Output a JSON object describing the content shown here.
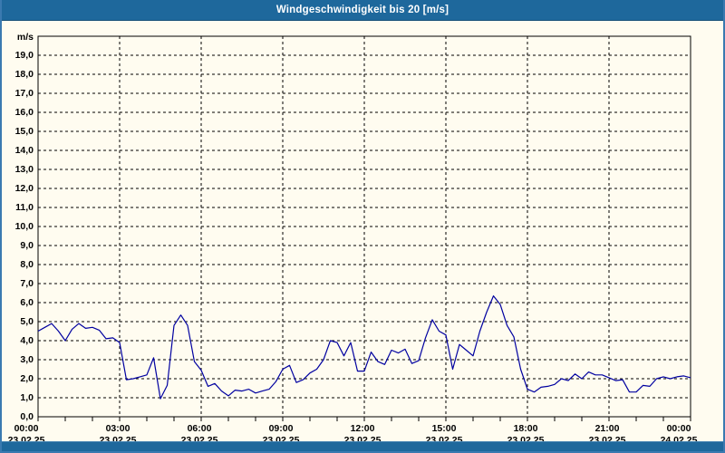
{
  "header": {
    "title": "Windgeschwindigkeit bis 20 [m/s]"
  },
  "colors": {
    "titlebar": "#1e689c",
    "window_border": "#3a7ab0",
    "background": "#fffcf0",
    "grid": "#000000",
    "line": "#0000a0"
  },
  "chart_data": {
    "type": "line",
    "title": "Windgeschwindigkeit bis 20 [m/s]",
    "ylabel": "m/s",
    "xlabel": "",
    "ylim": [
      0,
      20
    ],
    "x_range_hours": [
      0,
      24
    ],
    "grid": "dashed",
    "legend": "none",
    "minor_x_tick_hours": 1,
    "major_x_tick_hours": 3,
    "y_tick_labels": [
      "0,0",
      "1,0",
      "2,0",
      "3,0",
      "4,0",
      "5,0",
      "6,0",
      "7,0",
      "8,0",
      "9,0",
      "10,0",
      "11,0",
      "12,0",
      "13,0",
      "14,0",
      "15,0",
      "16,0",
      "17,0",
      "18,0",
      "19,0"
    ],
    "x_ticks": [
      {
        "hour": 0,
        "time": "00:00",
        "date": "23.02.25"
      },
      {
        "hour": 3,
        "time": "03:00",
        "date": "23.02.25"
      },
      {
        "hour": 6,
        "time": "06:00",
        "date": "23.02.25"
      },
      {
        "hour": 9,
        "time": "09:00",
        "date": "23.02.25"
      },
      {
        "hour": 12,
        "time": "12:00",
        "date": "23.02.25"
      },
      {
        "hour": 15,
        "time": "15:00",
        "date": "23.02.25"
      },
      {
        "hour": 18,
        "time": "18:00",
        "date": "23.02.25"
      },
      {
        "hour": 21,
        "time": "21:00",
        "date": "23.02.25"
      },
      {
        "hour": 24,
        "time": "00:00",
        "date": "24.02.25"
      }
    ],
    "sample_interval_hours": 0.25,
    "series": [
      {
        "name": "Windgeschwindigkeit",
        "color": "#0000a0",
        "values": [
          4.5,
          4.7,
          4.9,
          4.5,
          4.0,
          4.6,
          4.9,
          4.65,
          4.7,
          4.55,
          4.1,
          4.15,
          3.9,
          1.95,
          2.0,
          2.1,
          2.2,
          3.1,
          0.95,
          1.65,
          4.8,
          5.35,
          4.8,
          2.9,
          2.45,
          1.6,
          1.75,
          1.35,
          1.1,
          1.4,
          1.35,
          1.45,
          1.25,
          1.35,
          1.45,
          1.85,
          2.5,
          2.7,
          1.8,
          1.95,
          2.3,
          2.5,
          3.0,
          4.0,
          3.9,
          3.2,
          3.9,
          2.4,
          2.4,
          3.4,
          2.9,
          2.75,
          3.5,
          3.35,
          3.55,
          2.8,
          2.95,
          4.15,
          5.1,
          4.5,
          4.3,
          2.5,
          3.8,
          3.5,
          3.2,
          4.5,
          5.5,
          6.35,
          5.9,
          4.8,
          4.2,
          2.5,
          1.45,
          1.3,
          1.55,
          1.6,
          1.7,
          2.0,
          1.9,
          2.25,
          2.0,
          2.35,
          2.2,
          2.2,
          2.05,
          1.9,
          1.95,
          1.3,
          1.3,
          1.65,
          1.6,
          2.0,
          2.1,
          2.0,
          2.1,
          2.15,
          2.05
        ]
      }
    ]
  }
}
